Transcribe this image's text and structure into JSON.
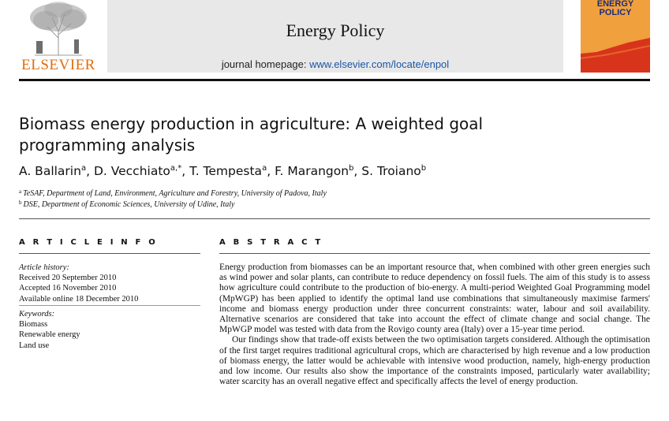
{
  "header": {
    "publisher": "ELSEVIER",
    "journal_name": "Energy Policy",
    "homepage_label": "journal homepage:",
    "homepage_url": "www.elsevier.com/locate/enpol",
    "cover_title_line1": "ENERGY",
    "cover_title_line2": "POLICY"
  },
  "article": {
    "title_line1": "Biomass energy production in agriculture: A weighted goal",
    "title_line2": "programming analysis",
    "authors": [
      {
        "name": "A. Ballarin",
        "sup": "a"
      },
      {
        "name": "D. Vecchiato",
        "sup": "a,*"
      },
      {
        "name": "T. Tempesta",
        "sup": "a"
      },
      {
        "name": "F. Marangon",
        "sup": "b"
      },
      {
        "name": "S. Troiano",
        "sup": "b"
      }
    ],
    "affiliations": [
      {
        "sup": "a",
        "text": "TeSAF, Department of Land, Environment, Agriculture and Forestry, University of Padova, Italy"
      },
      {
        "sup": "b",
        "text": "DSE, Department of Economic Sciences, University of Udine, Italy"
      }
    ]
  },
  "article_info": {
    "heading": "A R T I C L E   I N F O",
    "history_label": "Article history:",
    "received": "Received 20 September 2010",
    "accepted": "Accepted 16 November 2010",
    "online": "Available online 18 December 2010",
    "keywords_label": "Keywords:",
    "keywords": [
      "Biomass",
      "Renewable energy",
      "Land use"
    ]
  },
  "abstract": {
    "heading": "A B S T R A C T",
    "paragraph1": "Energy production from biomasses can be an important resource that, when combined with other green energies such as wind power and solar plants, can contribute to reduce dependency on fossil fuels. The aim of this study is to assess how agriculture could contribute to the production of bio-energy. A multi-period Weighted Goal Programming model (MpWGP) has been applied to identify the optimal land use combinations that simultaneously maximise farmers' income and biomass energy production under three concurrent constraints: water, labour and soil availability. Alternative scenarios are considered that take into account the effect of climate change and social change. The MpWGP model was tested with data from the Rovigo county area (Italy) over a 15-year time period.",
    "paragraph2": "Our findings show that trade-off exists between the two optimisation targets considered. Although the optimisation of the first target requires traditional agricultural crops, which are characterised by high revenue and a low production of biomass energy, the latter would be achievable with intensive wood production, namely, high-energy production and low income. Our results also show the importance of the constraints imposed, particularly water availability; water scarcity has an overall negative effect and specifically affects the level of energy production."
  },
  "colors": {
    "elsevier_orange": "#e36c0a",
    "journal_band_gray": "#e8e8e8",
    "link_blue": "#1a56a6",
    "cover_navy": "#1c2c7c",
    "cover_orange": "#f0a03c",
    "cover_red": "#d8341c"
  }
}
